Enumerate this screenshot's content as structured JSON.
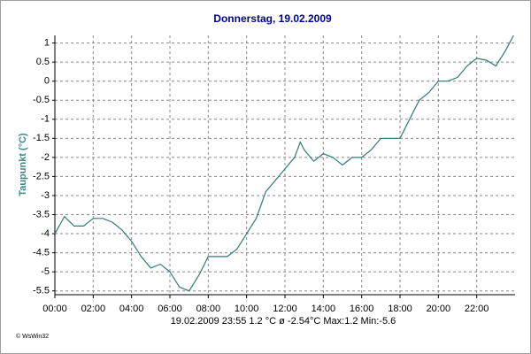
{
  "chart_data": {
    "type": "line",
    "title": "Donnerstag, 19.02.2009",
    "y_label": "Taupunkt  (°C)",
    "status": "19.02.2009  23:55   1.2 °C   ø -2.54°C  Max:1.2  Min:-5.6",
    "credit": "© WsWin32",
    "x": [
      0,
      0.5,
      1,
      1.5,
      2,
      2.5,
      3,
      3.5,
      4,
      4.5,
      5,
      5.5,
      6,
      6.5,
      7,
      7.5,
      8,
      8.5,
      9,
      9.5,
      10,
      10.5,
      11,
      11.5,
      12,
      12.5,
      12.8,
      13,
      13.5,
      14,
      14.5,
      15,
      15.5,
      16,
      16.5,
      17,
      17.5,
      18,
      18.5,
      19,
      19.5,
      20,
      20.5,
      21,
      21.5,
      22,
      22.5,
      23,
      23.5,
      23.92
    ],
    "series": [
      {
        "name": "Taupunkt",
        "color": "#2f7a78",
        "values": [
          -4.0,
          -3.55,
          -3.8,
          -3.8,
          -3.6,
          -3.6,
          -3.7,
          -3.9,
          -4.2,
          -4.6,
          -4.9,
          -4.8,
          -5.0,
          -5.4,
          -5.5,
          -5.1,
          -4.6,
          -4.6,
          -4.6,
          -4.4,
          -4.0,
          -3.6,
          -2.9,
          -2.6,
          -2.3,
          -2.0,
          -1.6,
          -1.8,
          -2.1,
          -1.9,
          -2.0,
          -2.2,
          -2.0,
          -2.0,
          -1.8,
          -1.5,
          -1.5,
          -1.5,
          -1.0,
          -0.5,
          -0.3,
          0.0,
          0.0,
          0.1,
          0.4,
          0.6,
          0.55,
          0.4,
          0.8,
          1.2
        ]
      }
    ],
    "xlim": [
      0,
      24
    ],
    "xticks": [
      {
        "value": 0,
        "label": "00:00"
      },
      {
        "value": 2,
        "label": "02:00"
      },
      {
        "value": 4,
        "label": "04:00"
      },
      {
        "value": 6,
        "label": "06:00"
      },
      {
        "value": 8,
        "label": "08:00"
      },
      {
        "value": 10,
        "label": "10:00"
      },
      {
        "value": 12,
        "label": "12:00"
      },
      {
        "value": 14,
        "label": "14:00"
      },
      {
        "value": 16,
        "label": "16:00"
      },
      {
        "value": 18,
        "label": "18:00"
      },
      {
        "value": 20,
        "label": "20:00"
      },
      {
        "value": 22,
        "label": "22:00"
      }
    ],
    "ylim": [
      -5.6,
      1.2
    ],
    "yticks": [
      1,
      0.5,
      0,
      -0.5,
      -1,
      -1.5,
      -2,
      -2.5,
      -3,
      -3.5,
      -4,
      -4.5,
      -5,
      -5.5
    ],
    "grid": true
  }
}
